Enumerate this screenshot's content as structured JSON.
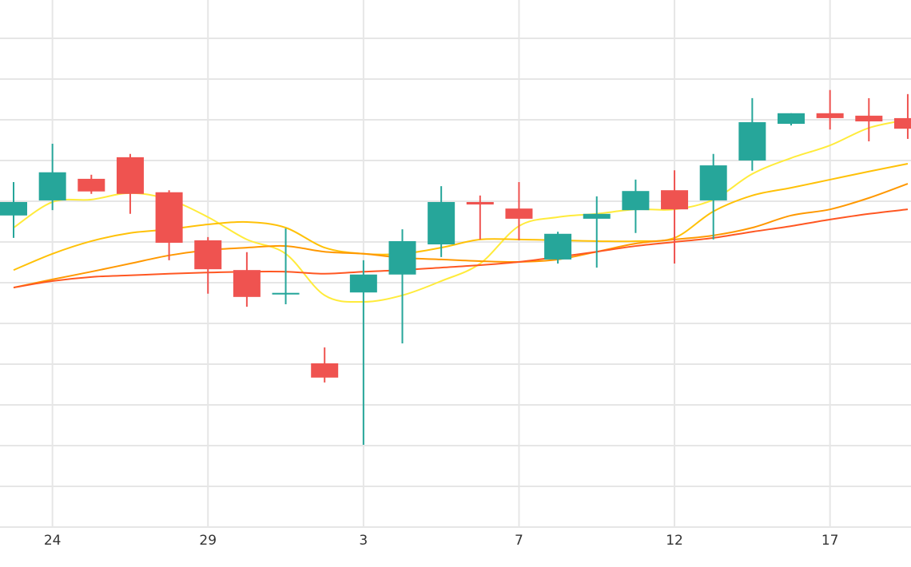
{
  "chart_data": {
    "type": "candlestick",
    "categories": [
      null,
      "24",
      null,
      null,
      null,
      "29",
      null,
      null,
      null,
      "3",
      null,
      null,
      null,
      "7",
      null,
      null,
      null,
      "12",
      null,
      null,
      null,
      "17",
      null,
      null
    ],
    "open": [
      76.5,
      80.2,
      85.5,
      90.8,
      82.2,
      70.4,
      63.1,
      57.1,
      40.2,
      57.6,
      62.0,
      69.4,
      79.8,
      78.2,
      65.7,
      75.7,
      77.8,
      82.7,
      80.2,
      90.0,
      99.0,
      101.6,
      101.0,
      100.4
    ],
    "high": [
      84.7,
      94.1,
      86.5,
      91.6,
      82.7,
      71.2,
      67.5,
      73.3,
      44.1,
      65.5,
      73.1,
      83.7,
      81.4,
      84.7,
      72.5,
      81.2,
      85.3,
      87.6,
      91.6,
      105.3,
      101.6,
      107.3,
      105.3,
      106.3
    ],
    "low": [
      71.0,
      77.8,
      81.8,
      76.9,
      65.5,
      57.3,
      54.1,
      54.7,
      35.5,
      20.2,
      45.1,
      66.3,
      70.6,
      70.4,
      64.7,
      63.7,
      72.2,
      64.7,
      70.6,
      87.5,
      98.6,
      97.6,
      94.7,
      95.3
    ],
    "close": [
      79.8,
      87.1,
      82.4,
      81.8,
      69.8,
      63.3,
      56.5,
      57.5,
      36.7,
      62.0,
      70.2,
      79.8,
      79.2,
      75.7,
      72.0,
      76.9,
      82.5,
      78.0,
      88.8,
      99.4,
      101.6,
      100.4,
      99.6,
      97.8
    ],
    "up_color": "#26a69a",
    "down_color": "#ef5350",
    "series": [
      {
        "color": "#ffeb3b",
        "values": [
          73.5,
          79.8,
          80.4,
          82.0,
          80.4,
          76.1,
          70.6,
          67.1,
          56.9,
          55.3,
          56.9,
          60.4,
          64.7,
          73.9,
          76.1,
          76.9,
          78.0,
          78.0,
          80.4,
          86.7,
          90.6,
          93.7,
          98.0,
          100.0
        ]
      },
      {
        "color": "#ffc107",
        "values": [
          63.1,
          67.1,
          70.2,
          72.2,
          73.1,
          74.3,
          74.9,
          73.5,
          68.6,
          67.1,
          67.1,
          68.6,
          70.6,
          70.6,
          70.4,
          70.2,
          70.2,
          71.0,
          77.5,
          81.4,
          83.3,
          85.3,
          87.3,
          89.2
        ]
      },
      {
        "color": "#ff9800",
        "values": [
          58.8,
          60.8,
          62.7,
          64.7,
          66.7,
          68.0,
          68.6,
          69.0,
          67.6,
          67.1,
          66.1,
          65.7,
          65.3,
          65.1,
          65.7,
          67.6,
          69.6,
          70.6,
          71.6,
          73.5,
          76.5,
          78.0,
          80.8,
          84.3
        ]
      },
      {
        "color": "#ff5722",
        "values": [
          58.8,
          60.4,
          61.4,
          61.8,
          62.2,
          62.5,
          62.7,
          62.7,
          62.2,
          62.7,
          63.1,
          63.7,
          64.3,
          65.1,
          66.3,
          67.6,
          69.0,
          70.0,
          71.0,
          72.5,
          73.9,
          75.5,
          76.9,
          78.0
        ]
      }
    ],
    "ylim": [
      0,
      130
    ],
    "yticks": [
      0,
      10,
      20,
      30,
      40,
      50,
      60,
      70,
      80,
      90,
      100,
      110,
      120
    ],
    "grid": true
  }
}
